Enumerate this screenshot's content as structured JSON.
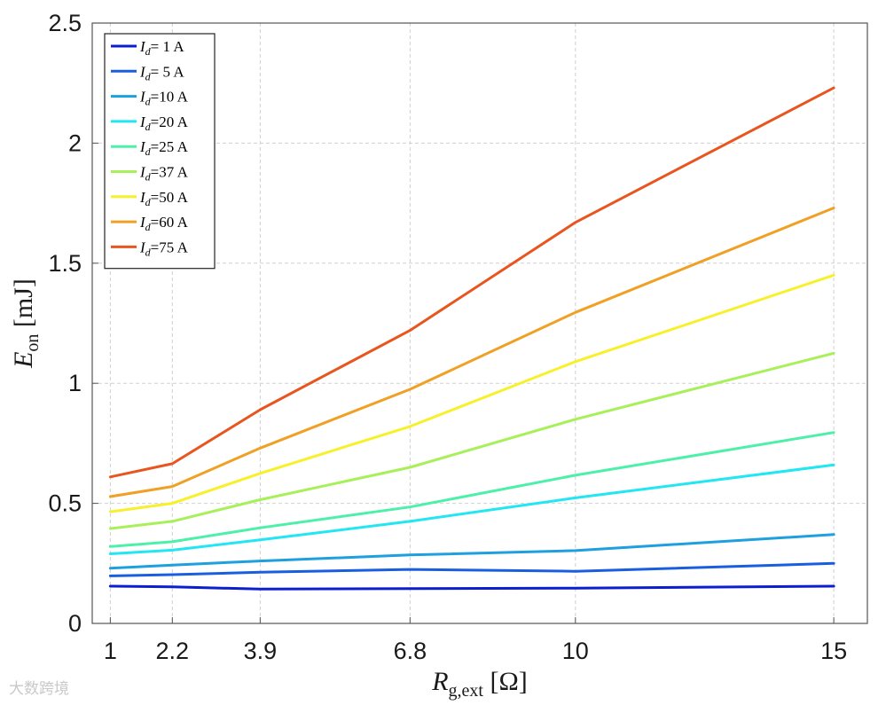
{
  "chart_data": {
    "type": "line",
    "x": [
      1,
      2.2,
      3.9,
      6.8,
      10,
      15
    ],
    "x_tick_labels": [
      "1",
      "2.2",
      "3.9",
      "6.8",
      "10",
      "15"
    ],
    "y_ticks": [
      0,
      0.5,
      1,
      1.5,
      2,
      2.5
    ],
    "y_tick_labels": [
      "0",
      "0.5",
      "1",
      "1.5",
      "2",
      "2.5"
    ],
    "xlabel": {
      "main": "R",
      "sub": "g,ext",
      "unit": "[Ω]"
    },
    "ylabel": {
      "main": "E",
      "sub": "on",
      "unit": "[mJ]"
    },
    "ylim": [
      0,
      2.5
    ],
    "grid": true,
    "legend_position": "top-left",
    "series": [
      {
        "name_var": "I",
        "name_sub": "d",
        "name_rest": "= 1 A",
        "color": "#0b1fd0",
        "values": [
          0.155,
          0.152,
          0.143,
          0.145,
          0.147,
          0.155
        ]
      },
      {
        "name_var": "I",
        "name_sub": "d",
        "name_rest": "= 5 A",
        "color": "#1a5ee0",
        "values": [
          0.198,
          0.203,
          0.213,
          0.225,
          0.217,
          0.25
        ]
      },
      {
        "name_var": "I",
        "name_sub": "d",
        "name_rest": "=10 A",
        "color": "#1e9fe0",
        "values": [
          0.23,
          0.243,
          0.26,
          0.285,
          0.303,
          0.37
        ]
      },
      {
        "name_var": "I",
        "name_sub": "d",
        "name_rest": "=20 A",
        "color": "#22e6f2",
        "values": [
          0.29,
          0.305,
          0.348,
          0.425,
          0.523,
          0.66
        ]
      },
      {
        "name_var": "I",
        "name_sub": "d",
        "name_rest": "=25 A",
        "color": "#4df0a8",
        "values": [
          0.32,
          0.34,
          0.398,
          0.485,
          0.617,
          0.795
        ]
      },
      {
        "name_var": "I",
        "name_sub": "d",
        "name_rest": "=37 A",
        "color": "#a8f05a",
        "values": [
          0.395,
          0.425,
          0.515,
          0.65,
          0.85,
          1.125
        ]
      },
      {
        "name_var": "I",
        "name_sub": "d",
        "name_rest": "=50 A",
        "color": "#f8f02a",
        "values": [
          0.465,
          0.5,
          0.625,
          0.82,
          1.09,
          1.45
        ]
      },
      {
        "name_var": "I",
        "name_sub": "d",
        "name_rest": "=60 A",
        "color": "#f0a024",
        "values": [
          0.528,
          0.57,
          0.73,
          0.975,
          1.295,
          1.73
        ]
      },
      {
        "name_var": "I",
        "name_sub": "d",
        "name_rest": "=75 A",
        "color": "#e8551e",
        "values": [
          0.61,
          0.665,
          0.89,
          1.22,
          1.67,
          2.23
        ]
      }
    ]
  },
  "watermark": "大数跨境"
}
